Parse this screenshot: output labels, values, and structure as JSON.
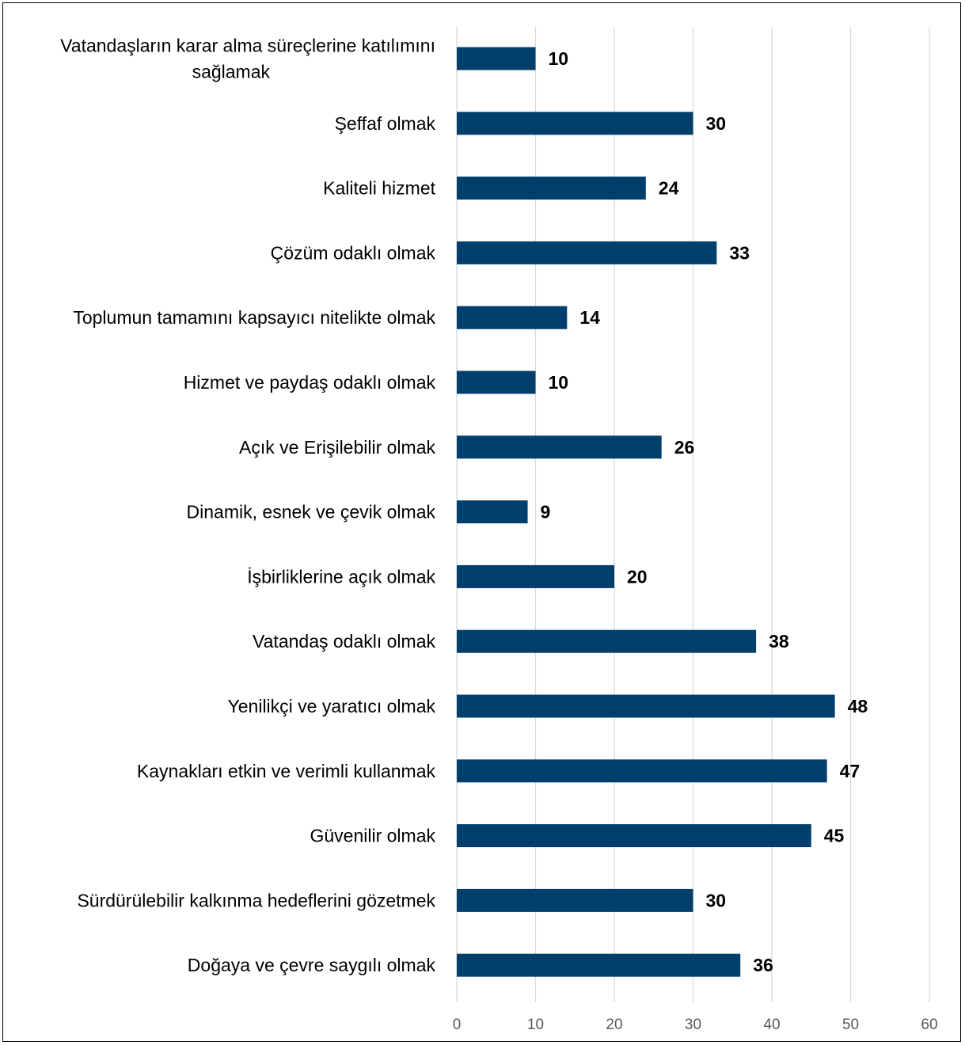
{
  "chart_data": {
    "type": "bar",
    "orientation": "horizontal",
    "categories": [
      "Vatandaşların karar alma süreçlerine katılımını sağlamak",
      "Şeffaf olmak",
      "Kaliteli hizmet",
      "Çözüm odaklı olmak",
      "Toplumun tamamını kapsayıcı nitelikte olmak",
      "Hizmet ve paydaş odaklı olmak",
      "Açık ve Erişilebilir olmak",
      "Dinamik, esnek ve çevik olmak",
      "İşbirliklerine açık olmak",
      "Vatandaş odaklı olmak",
      "Yenilikçi ve yaratıcı olmak",
      "Kaynakları etkin ve verimli kullanmak",
      "Güvenilir olmak",
      "Sürdürülebilir kalkınma hedeflerini gözetmek",
      "Doğaya ve çevre saygılı olmak"
    ],
    "category_lines": [
      [
        "Vatandaşların karar alma süreçlerine katılımını",
        "sağlamak"
      ],
      [
        "Şeffaf olmak"
      ],
      [
        "Kaliteli hizmet"
      ],
      [
        "Çözüm odaklı olmak"
      ],
      [
        "Toplumun tamamını kapsayıcı nitelikte olmak"
      ],
      [
        "Hizmet ve paydaş odaklı olmak"
      ],
      [
        "Açık ve Erişilebilir olmak"
      ],
      [
        "Dinamik, esnek ve çevik olmak"
      ],
      [
        "İşbirliklerine açık olmak"
      ],
      [
        "Vatandaş odaklı olmak"
      ],
      [
        "Yenilikçi ve yaratıcı olmak"
      ],
      [
        "Kaynakları etkin ve verimli kullanmak"
      ],
      [
        "Güvenilir olmak"
      ],
      [
        "Sürdürülebilir kalkınma hedeflerini gözetmek"
      ],
      [
        "Doğaya ve çevre saygılı olmak"
      ]
    ],
    "values": [
      10,
      30,
      24,
      33,
      14,
      10,
      26,
      9,
      20,
      38,
      48,
      47,
      45,
      30,
      36
    ],
    "xlim": [
      0,
      60
    ],
    "x_ticks": [
      0,
      10,
      20,
      30,
      40,
      50,
      60
    ],
    "grid": "vertical",
    "data_labels": true,
    "legend": "none",
    "bar_color": "#003F6B",
    "grid_color": "#D9D9D9",
    "title": "",
    "xlabel": "",
    "ylabel": ""
  }
}
